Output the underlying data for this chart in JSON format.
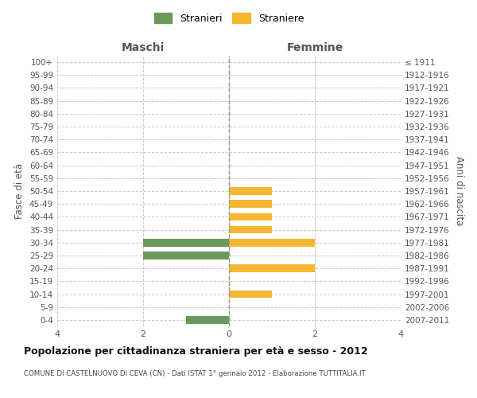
{
  "age_groups": [
    "100+",
    "95-99",
    "90-94",
    "85-89",
    "80-84",
    "75-79",
    "70-74",
    "65-69",
    "60-64",
    "55-59",
    "50-54",
    "45-49",
    "40-44",
    "35-39",
    "30-34",
    "25-29",
    "20-24",
    "15-19",
    "10-14",
    "5-9",
    "0-4"
  ],
  "birth_years": [
    "≤ 1911",
    "1912-1916",
    "1917-1921",
    "1922-1926",
    "1927-1931",
    "1932-1936",
    "1937-1941",
    "1942-1946",
    "1947-1951",
    "1952-1956",
    "1957-1961",
    "1962-1966",
    "1967-1971",
    "1972-1976",
    "1977-1981",
    "1982-1986",
    "1987-1991",
    "1992-1996",
    "1997-2001",
    "2002-2006",
    "2007-2011"
  ],
  "maschi": [
    0,
    0,
    0,
    0,
    0,
    0,
    0,
    0,
    0,
    0,
    0,
    0,
    0,
    0,
    2,
    2,
    0,
    0,
    0,
    0,
    1
  ],
  "femmine": [
    0,
    0,
    0,
    0,
    0,
    0,
    0,
    0,
    0,
    0,
    1,
    1,
    1,
    1,
    2,
    0,
    2,
    0,
    1,
    0,
    0
  ],
  "male_color": "#6a9a5a",
  "female_color": "#f5b731",
  "title": "Popolazione per cittadinanza straniera per età e sesso - 2012",
  "subtitle": "COMUNE DI CASTELNUOVO DI CEVA (CN) - Dati ISTAT 1° gennaio 2012 - Elaborazione TUTTITALIA.IT",
  "legend_male": "Stranieri",
  "legend_female": "Straniere",
  "label_maschi": "Maschi",
  "label_femmine": "Femmine",
  "ylabel_left": "Fasce di età",
  "ylabel_right": "Anni di nascita",
  "xlim": 4,
  "bg_color": "#ffffff",
  "grid_color": "#cccccc"
}
